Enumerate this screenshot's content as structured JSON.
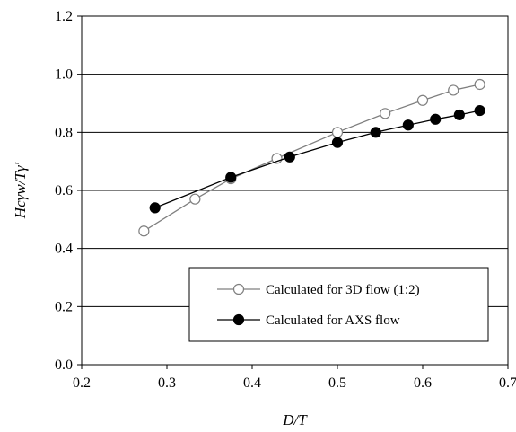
{
  "chart_data": {
    "type": "line",
    "xlabel": "D/T",
    "ylabel": "Hcγw/Tγ'",
    "xlim": [
      0.2,
      0.7
    ],
    "ylim": [
      0.0,
      1.2
    ],
    "x_ticks": [
      "0.2",
      "0.3",
      "0.4",
      "0.5",
      "0.6",
      "0.7"
    ],
    "y_ticks": [
      "0.0",
      "0.2",
      "0.4",
      "0.6",
      "0.8",
      "1.0",
      "1.2"
    ],
    "grid": "horizontal",
    "legend_position": "bottom-right",
    "series": [
      {
        "name": "Calculated for 3D flow (1:2)",
        "marker": "open-circle",
        "color": "#7f7f7f",
        "x": [
          0.273,
          0.333,
          0.375,
          0.429,
          0.5,
          0.556,
          0.6,
          0.636,
          0.667
        ],
        "y": [
          0.46,
          0.57,
          0.64,
          0.71,
          0.8,
          0.865,
          0.91,
          0.945,
          0.965
        ]
      },
      {
        "name": "Calculated for AXS flow",
        "marker": "filled-circle",
        "color": "#000000",
        "x": [
          0.286,
          0.375,
          0.444,
          0.5,
          0.545,
          0.583,
          0.615,
          0.643,
          0.667
        ],
        "y": [
          0.54,
          0.645,
          0.715,
          0.765,
          0.8,
          0.825,
          0.845,
          0.86,
          0.875
        ]
      }
    ]
  }
}
